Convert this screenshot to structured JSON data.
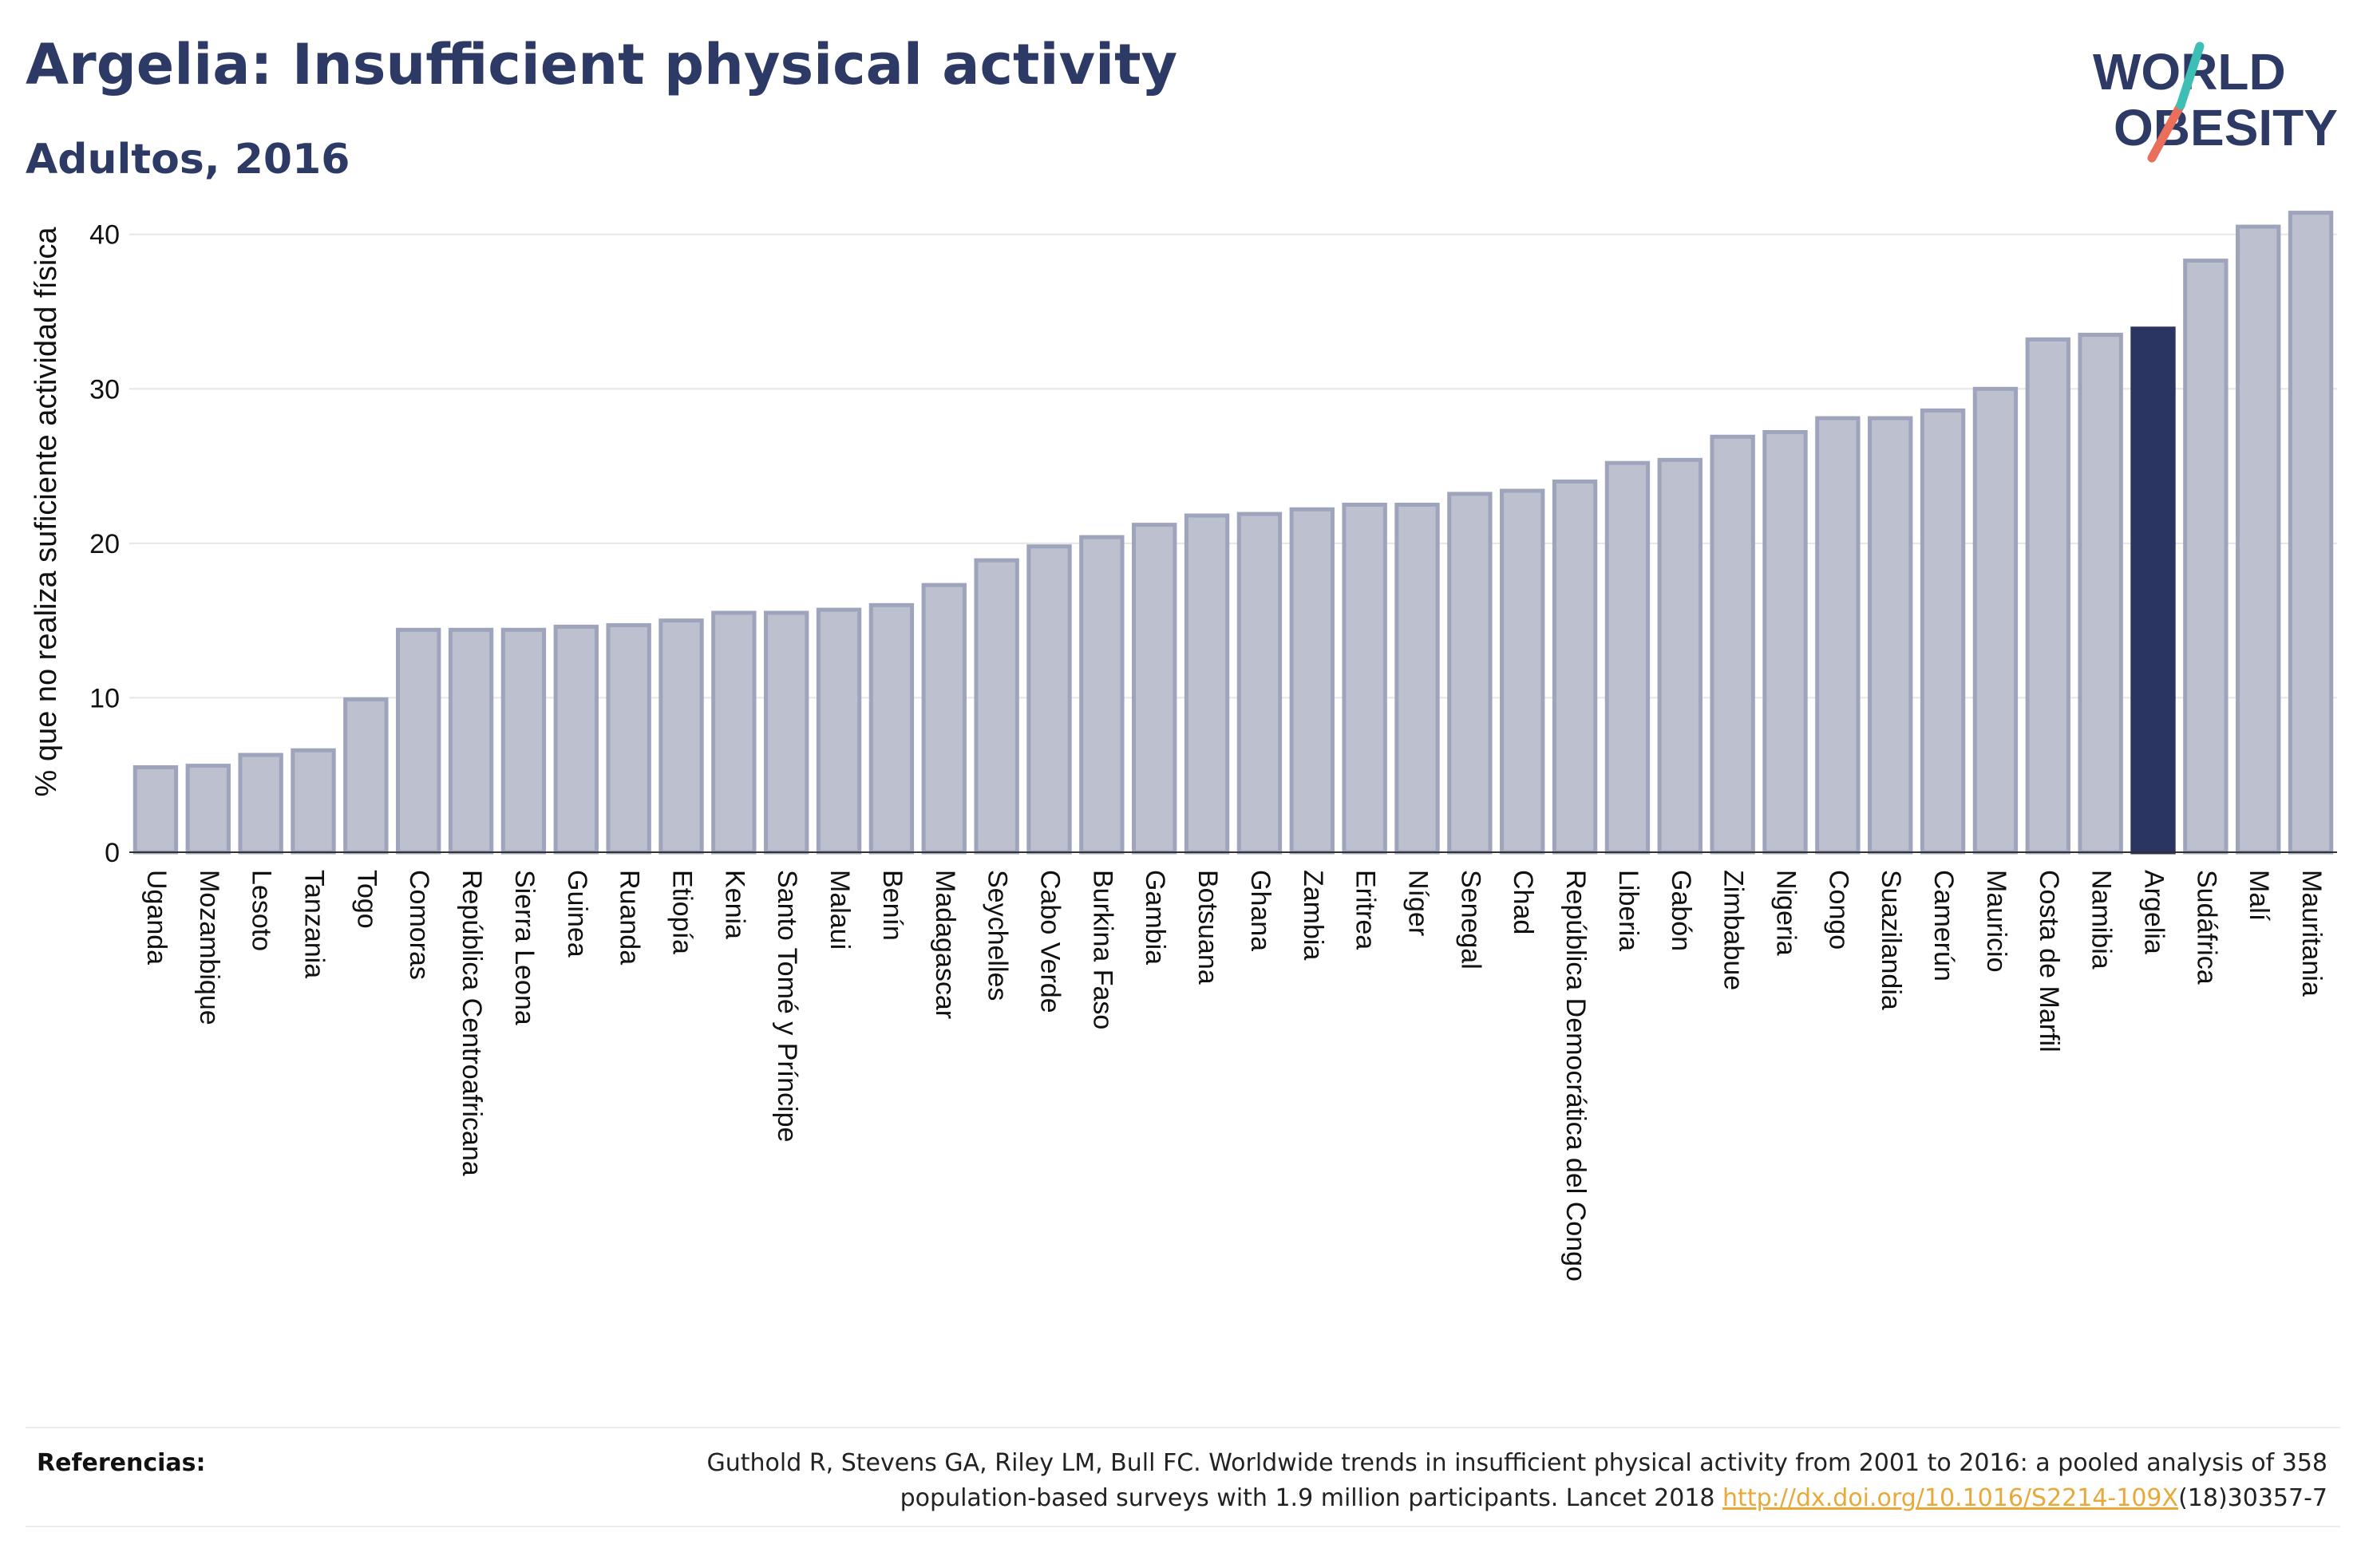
{
  "header": {
    "title": "Argelia: Insufficient physical activity",
    "subtitle": "Adultos, 2016"
  },
  "logo": {
    "line1": "WORLD",
    "line2": "OBESITY"
  },
  "chart_data": {
    "type": "bar",
    "ylabel": "% que no realiza suficiente actividad física",
    "xlabel": "",
    "ylim": [
      0,
      42
    ],
    "yticks": [
      0,
      10,
      20,
      30,
      40
    ],
    "grid": true,
    "highlight": "Argelia",
    "colors": {
      "bar": "#bcc0cf",
      "bar_border": "#9ea4bb",
      "highlight": "#2a3561",
      "grid": "#e6e6e6"
    },
    "categories": [
      "Uganda",
      "Mozambique",
      "Lesoto",
      "Tanzania",
      "Togo",
      "Comoras",
      "República Centroafricana",
      "Sierra Leona",
      "Guinea",
      "Ruanda",
      "Etiopía",
      "Kenia",
      "Santo Tomé y Príncipe",
      "Malaui",
      "Benín",
      "Madagascar",
      "Seychelles",
      "Cabo Verde",
      "Burkina Faso",
      "Gambia",
      "Botsuana",
      "Ghana",
      "Zambia",
      "Eritrea",
      "Níger",
      "Senegal",
      "Chad",
      "República Democrática del Congo",
      "Liberia",
      "Gabón",
      "Zimbabue",
      "Nigeria",
      "Congo",
      "Suazilandia",
      "Camerún",
      "Mauricio",
      "Costa de Marfil",
      "Namibia",
      "Argelia",
      "Sudáfrica",
      "Malí",
      "Mauritania"
    ],
    "values": [
      5.5,
      5.6,
      6.3,
      6.6,
      9.9,
      14.4,
      14.4,
      14.4,
      14.6,
      14.7,
      15.0,
      15.5,
      15.5,
      15.7,
      16.0,
      17.3,
      18.9,
      19.8,
      20.4,
      21.2,
      21.8,
      21.9,
      22.2,
      22.5,
      22.5,
      23.2,
      23.4,
      24.0,
      25.2,
      25.4,
      26.9,
      27.2,
      28.1,
      28.1,
      28.6,
      30.0,
      33.2,
      33.5,
      33.9,
      38.3,
      40.5,
      41.4
    ]
  },
  "footer": {
    "ref_label": "Referencias:",
    "ref_text_line1": "Guthold R, Stevens GA, Riley LM, Bull FC. Worldwide trends in insufficient physical activity from 2001 to 2016: a pooled analysis of 358",
    "ref_text_line2": "population-based surveys with 1.9 million participants. Lancet 2018",
    "ref_link": "http://dx.doi.org/10.1016/S2214-109X",
    "ref_suffix": "(18)30357-7"
  }
}
